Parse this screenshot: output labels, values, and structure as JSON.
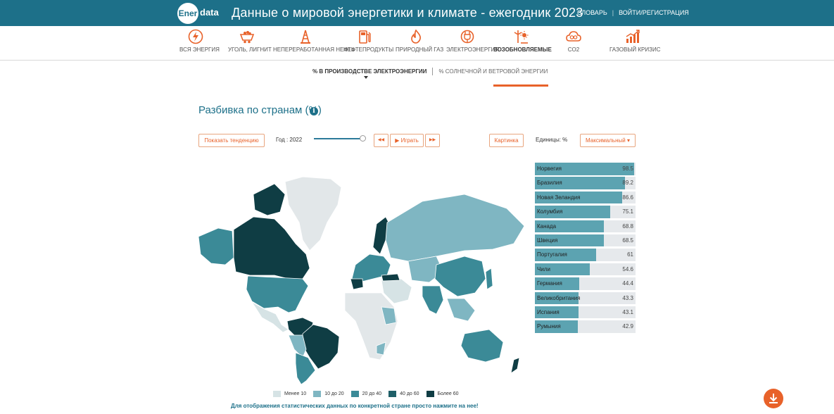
{
  "header": {
    "logo_bubble": "Ener",
    "logo_tail": "data",
    "title": "Данные о мировой энергетики и климате - ежегодник 2023",
    "links": [
      "СЛОВАРЬ",
      "ВОЙТИ/РЕГИСТРАЦИЯ"
    ]
  },
  "nav": {
    "items": [
      {
        "label": "ВСЯ ЭНЕРГИЯ",
        "icon": "bolt-circle-icon"
      },
      {
        "label": "УГОЛЬ, ЛИГНИТ",
        "icon": "coal-cart-icon"
      },
      {
        "label": "НЕПЕРЕРАБОТАННАЯ НЕФТЬ",
        "icon": "oil-derrick-icon"
      },
      {
        "label": "НЕФТЕПРОДУКТЫ",
        "icon": "fuel-pump-icon"
      },
      {
        "label": "ПРИРОДНЫЙ ГАЗ",
        "icon": "gas-flame-icon"
      },
      {
        "label": "ЭЛЕКТРОЭНЕРГИЯ",
        "icon": "plug-icon"
      },
      {
        "label": "ВОЗОБНОВЛЯЕМЫЕ",
        "icon": "wind-sun-icon",
        "active": true
      },
      {
        "label": "CO2",
        "icon": "co2-cloud-icon"
      },
      {
        "label": "ГАЗОВЫЙ КРИЗИС",
        "icon": "rising-chart-icon"
      }
    ]
  },
  "subnav": {
    "active": "% В ПРОИЗВОДСТВЕ ЭЛЕКТРОЭНЕРГИИ",
    "other": "% СОЛНЕЧНОЙ И ВЕТРОВОЙ ЭНЕРГИИ"
  },
  "section": {
    "title": "Разбивка по странам (%)",
    "info_glyph": "i"
  },
  "controls": {
    "trend_button": "Показать тенденцию",
    "year_label": "Год : 2022",
    "year_slider_fraction": 1.0,
    "prev_glyph": "◀◀",
    "play_label": "▶ Играть",
    "next_glyph": "▶▶",
    "map_button": "Картинка",
    "units_label": "Единицы: %",
    "sort_select": "Максимальный ▾"
  },
  "ranking": [
    {
      "country": "Норвегия",
      "value": "98.5"
    },
    {
      "country": "Бразилия",
      "value": "89.2"
    },
    {
      "country": "Новая Зеландия",
      "value": "86.6"
    },
    {
      "country": "Колумбия",
      "value": "75.1"
    },
    {
      "country": "Канада",
      "value": "68.8"
    },
    {
      "country": "Швеция",
      "value": "68.5"
    },
    {
      "country": "Португалия",
      "value": "61"
    },
    {
      "country": "Чили",
      "value": "54.6"
    },
    {
      "country": "Германия",
      "value": "44.4"
    },
    {
      "country": "Великобритания",
      "value": "43.3"
    },
    {
      "country": "Испания",
      "value": "43.1"
    },
    {
      "country": "Румыния",
      "value": "42.9"
    }
  ],
  "colors": {
    "brand": "#1d7089",
    "accent": "#e8622a",
    "scale": [
      "#d6e3e5",
      "#7fb6c2",
      "#3b8a97",
      "#1f5f68",
      "#0f3d44"
    ]
  },
  "legend": [
    {
      "label": "Менее 10"
    },
    {
      "label": "10 до 20"
    },
    {
      "label": "20 до 40"
    },
    {
      "label": "40 до 60"
    },
    {
      "label": "Более 60"
    }
  ],
  "footnote": "Для отображения статистических данных по конкретной стране просто нажмите на нее!",
  "download_icon": "download-icon"
}
